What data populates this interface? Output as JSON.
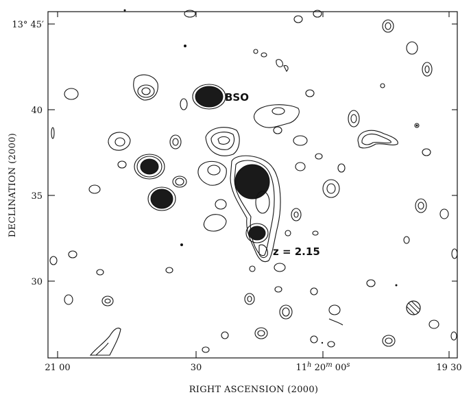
{
  "figure": {
    "x_axis": {
      "title": "RIGHT ASCENSION (2000)",
      "ticks": [
        {
          "label": "21 00"
        },
        {
          "label": "30"
        },
        {
          "label_parts": [
            "11",
            "h",
            " 20",
            "m",
            " 00",
            "s"
          ]
        },
        {
          "label": "19 30"
        }
      ]
    },
    "y_axis": {
      "title": "DECLINATION (2000)",
      "ticks": [
        {
          "label_parts": [
            "13° 45",
            "′"
          ]
        },
        {
          "label": "40"
        },
        {
          "label": "35"
        },
        {
          "label": "30"
        }
      ]
    },
    "annotations": {
      "bso": "BSO",
      "redshift": "z = 2.15"
    },
    "style": {
      "ink": "#111111",
      "background": "#ffffff"
    }
  }
}
